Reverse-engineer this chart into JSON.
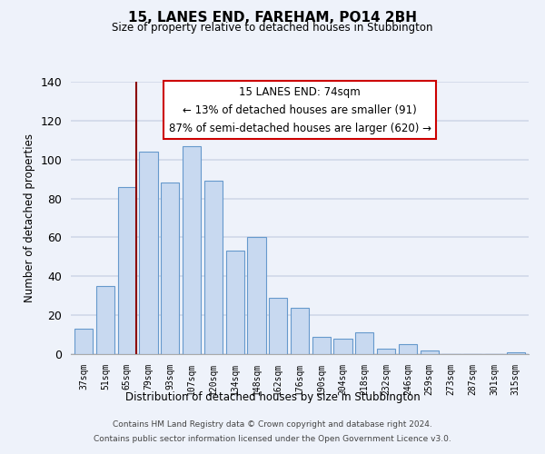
{
  "title": "15, LANES END, FAREHAM, PO14 2BH",
  "subtitle": "Size of property relative to detached houses in Stubbington",
  "xlabel": "Distribution of detached houses by size in Stubbington",
  "ylabel": "Number of detached properties",
  "bar_labels": [
    "37sqm",
    "51sqm",
    "65sqm",
    "79sqm",
    "93sqm",
    "107sqm",
    "120sqm",
    "134sqm",
    "148sqm",
    "162sqm",
    "176sqm",
    "190sqm",
    "204sqm",
    "218sqm",
    "232sqm",
    "246sqm",
    "259sqm",
    "273sqm",
    "287sqm",
    "301sqm",
    "315sqm"
  ],
  "bar_values": [
    13,
    35,
    86,
    104,
    88,
    107,
    89,
    53,
    60,
    29,
    24,
    9,
    8,
    11,
    3,
    5,
    2,
    0,
    0,
    0,
    1
  ],
  "bar_color": "#c8d9f0",
  "bar_edge_color": "#6699cc",
  "vline_color": "#8b0000",
  "annotation_title": "15 LANES END: 74sqm",
  "annotation_line1": "← 13% of detached houses are smaller (91)",
  "annotation_line2": "87% of semi-detached houses are larger (620) →",
  "annotation_box_color": "#ffffff",
  "annotation_box_edge": "#cc0000",
  "ylim": [
    0,
    140
  ],
  "yticks": [
    0,
    20,
    40,
    60,
    80,
    100,
    120,
    140
  ],
  "footer_line1": "Contains HM Land Registry data © Crown copyright and database right 2024.",
  "footer_line2": "Contains public sector information licensed under the Open Government Licence v3.0.",
  "background_color": "#eef2fa",
  "grid_color": "#d0d8e8"
}
